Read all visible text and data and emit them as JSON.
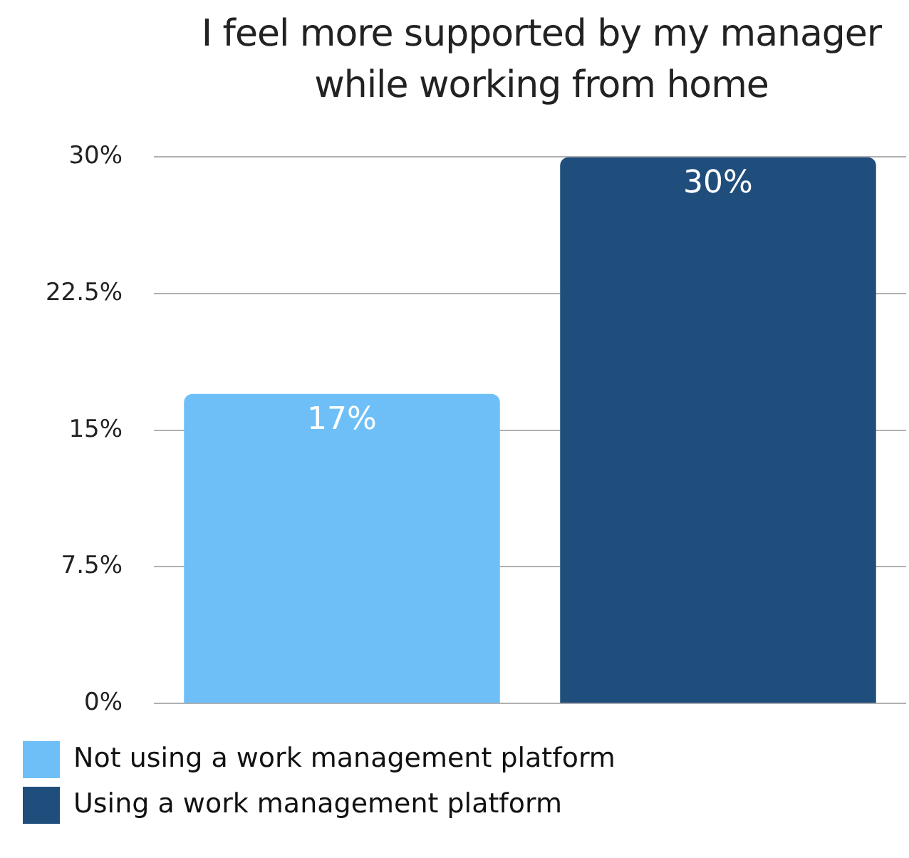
{
  "chart_data": {
    "type": "bar",
    "title": "I feel more supported by my manager while working from home",
    "categories": [
      null,
      null
    ],
    "series": [
      {
        "name": "Not using a work management platform",
        "color": "#6ebff7",
        "values": [
          17,
          null
        ],
        "value_labels": [
          "17%",
          null
        ]
      },
      {
        "name": "Using a work management platform",
        "color": "#1f4e7d",
        "values": [
          null,
          30
        ],
        "value_labels": [
          null,
          "30%"
        ]
      }
    ],
    "ylim": [
      0,
      30
    ],
    "yticks": [
      {
        "value": 0,
        "label": "0%"
      },
      {
        "value": 7.5,
        "label": "7.5%"
      },
      {
        "value": 15,
        "label": "15%"
      },
      {
        "value": 22.5,
        "label": "22.5%"
      },
      {
        "value": 30,
        "label": "30%"
      }
    ],
    "grid": "y",
    "legend": "bottom"
  }
}
